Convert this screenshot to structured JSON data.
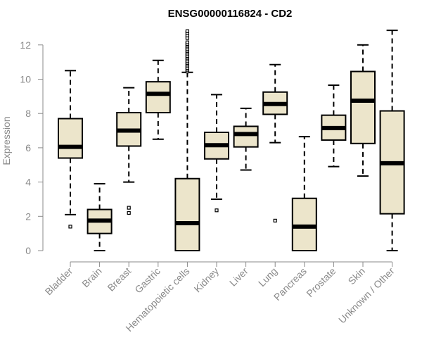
{
  "chart_data": {
    "type": "boxplot",
    "title": "ENSG00000116824 - CD2",
    "ylabel": "Expression",
    "xlabel": "",
    "ylim": [
      0,
      12.8
    ],
    "yticks": [
      0,
      2,
      4,
      6,
      8,
      10,
      12
    ],
    "categories": [
      "Bladder",
      "Brain",
      "Breast",
      "Gastric",
      "Hematopoietic cells",
      "Kidney",
      "Liver",
      "Lung",
      "Pancreas",
      "Prostate",
      "Skin",
      "Unknown / Other"
    ],
    "boxes": [
      {
        "name": "Bladder",
        "whisker_low": 2.1,
        "q1": 5.4,
        "median": 6.05,
        "q3": 7.7,
        "whisker_high": 10.5,
        "outliers": [
          1.4
        ]
      },
      {
        "name": "Brain",
        "whisker_low": 0.0,
        "q1": 1.0,
        "median": 1.75,
        "q3": 2.4,
        "whisker_high": 3.9,
        "outliers": []
      },
      {
        "name": "Breast",
        "whisker_low": 4.0,
        "q1": 6.1,
        "median": 7.0,
        "q3": 8.05,
        "whisker_high": 9.5,
        "outliers": [
          2.2,
          2.5
        ]
      },
      {
        "name": "Gastric",
        "whisker_low": 6.5,
        "q1": 8.05,
        "median": 9.15,
        "q3": 9.85,
        "whisker_high": 11.1,
        "outliers": []
      },
      {
        "name": "Hematopoietic cells",
        "whisker_low": 0.0,
        "q1": 0.0,
        "median": 1.6,
        "q3": 4.2,
        "whisker_high": 10.4,
        "outliers": [
          10.45,
          10.55,
          10.65,
          10.75,
          10.85,
          10.95,
          11.05,
          11.15,
          11.25,
          11.35,
          11.45,
          11.55,
          11.65,
          11.75,
          11.85,
          11.95,
          12.05,
          12.15,
          12.4,
          12.55,
          12.7,
          12.8
        ]
      },
      {
        "name": "Kidney",
        "whisker_low": 3.0,
        "q1": 5.35,
        "median": 6.15,
        "q3": 6.9,
        "whisker_high": 9.1,
        "outliers": [
          2.35
        ]
      },
      {
        "name": "Liver",
        "whisker_low": 4.7,
        "q1": 6.05,
        "median": 6.8,
        "q3": 7.25,
        "whisker_high": 8.3,
        "outliers": []
      },
      {
        "name": "Lung",
        "whisker_low": 6.3,
        "q1": 7.95,
        "median": 8.55,
        "q3": 9.25,
        "whisker_high": 10.85,
        "outliers": [
          1.75
        ]
      },
      {
        "name": "Pancreas",
        "whisker_low": 0.0,
        "q1": 0.0,
        "median": 1.4,
        "q3": 3.05,
        "whisker_high": 6.65,
        "outliers": []
      },
      {
        "name": "Prostate",
        "whisker_low": 4.9,
        "q1": 6.45,
        "median": 7.15,
        "q3": 7.9,
        "whisker_high": 9.65,
        "outliers": []
      },
      {
        "name": "Skin",
        "whisker_low": 4.35,
        "q1": 6.25,
        "median": 8.75,
        "q3": 10.45,
        "whisker_high": 12.0,
        "outliers": []
      },
      {
        "name": "Unknown / Other",
        "whisker_low": 0.0,
        "q1": 2.15,
        "median": 5.1,
        "q3": 8.15,
        "whisker_high": 12.85,
        "outliers": []
      }
    ],
    "colors": {
      "box_fill": "#ece5cb",
      "box_stroke": "#000000",
      "axis": "#8a8a8a",
      "text": "#8a8a8a",
      "title": "#000000"
    },
    "grid": false,
    "legend": "none"
  }
}
